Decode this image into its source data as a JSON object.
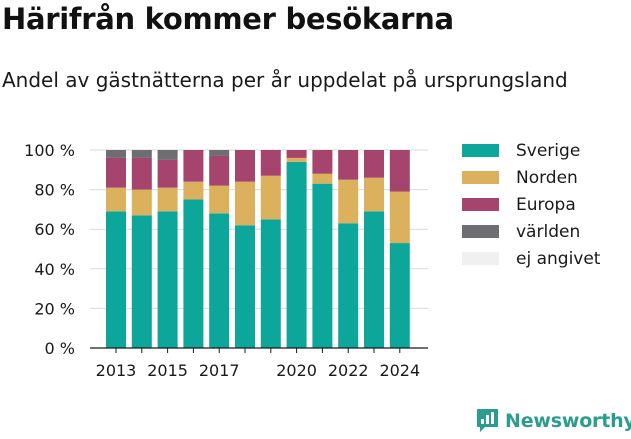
{
  "title": "Härifrån kommer besökarna",
  "subtitle": "Andel av gästnätterna per år uppdelat på ursprungsland",
  "brand": {
    "name": "Newsworthy"
  },
  "chart_data": {
    "type": "bar",
    "stacked": true,
    "categories": [
      "2013",
      "2014",
      "2015",
      "2016",
      "2017",
      "2018",
      "2019",
      "2020",
      "2021",
      "2022",
      "2023",
      "2024"
    ],
    "x_tick_labels": [
      "2013",
      "2015",
      "2017",
      "2020",
      "2022",
      "2024"
    ],
    "y_ticks": [
      "0 %",
      "20 %",
      "40 %",
      "60 %",
      "80 %",
      "100 %"
    ],
    "ylim": [
      0,
      100
    ],
    "grid": true,
    "legend_position": "right",
    "series": [
      {
        "name": "Sverige",
        "color": "#0ca69a",
        "values": [
          69,
          67,
          69,
          75,
          68,
          62,
          65,
          94,
          83,
          63,
          69,
          53
        ]
      },
      {
        "name": "Norden",
        "color": "#dcb15e",
        "values": [
          12,
          13,
          12,
          9,
          14,
          22,
          22,
          2,
          5,
          22,
          17,
          26
        ]
      },
      {
        "name": "Europa",
        "color": "#a5456d",
        "values": [
          15,
          16,
          14,
          16,
          15,
          16,
          13,
          4,
          12,
          15,
          14,
          21
        ]
      },
      {
        "name": "världen",
        "color": "#6e6e72",
        "values": [
          4,
          4,
          5,
          0,
          3,
          0,
          0,
          0,
          0,
          0,
          0,
          0
        ]
      },
      {
        "name": "ej angivet",
        "color": "#f0f0f0",
        "values": [
          0,
          0,
          0,
          0,
          0,
          0,
          0,
          0,
          0,
          0,
          0,
          0
        ]
      }
    ]
  }
}
